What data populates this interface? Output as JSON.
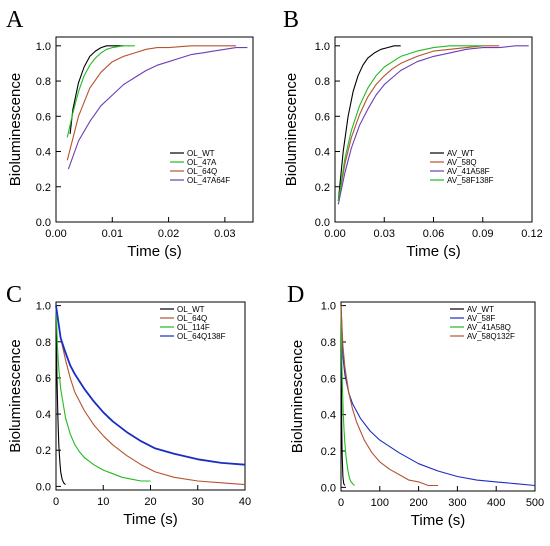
{
  "colors": {
    "black": "#000000",
    "green": "#22bb22",
    "brown": "#b5532e",
    "purple": "#6a3fb5",
    "blue": "#1a2cc4"
  },
  "chart_data": [
    {
      "panel": "A",
      "type": "line",
      "xlabel": "Time (s)",
      "ylabel": "Bioluminescence",
      "xlim": [
        0,
        0.035
      ],
      "ylim": [
        0,
        1.05
      ],
      "xticks": [
        0.0,
        0.01,
        0.02,
        0.03
      ],
      "xtick_labels": [
        "0.00",
        "0.01",
        "0.02",
        "0.03"
      ],
      "yticks": [
        0,
        0.2,
        0.4,
        0.6,
        0.8,
        1.0
      ],
      "ytick_labels": [
        "0.0",
        "0.2",
        "0.4",
        "0.6",
        "0.8",
        "1.0"
      ],
      "legend_position": "bottom-right",
      "series": [
        {
          "name": "OL_WT",
          "color": "#000000",
          "x": [
            0.0025,
            0.003,
            0.004,
            0.005,
            0.006,
            0.007,
            0.008,
            0.009,
            0.01,
            0.011,
            0.012
          ],
          "y": [
            0.5,
            0.64,
            0.79,
            0.88,
            0.94,
            0.97,
            0.99,
            1.0,
            1.0,
            1.0,
            1.0
          ]
        },
        {
          "name": "OL_47A",
          "color": "#22bb22",
          "x": [
            0.002,
            0.003,
            0.004,
            0.005,
            0.006,
            0.007,
            0.008,
            0.009,
            0.01,
            0.012,
            0.014
          ],
          "y": [
            0.48,
            0.62,
            0.74,
            0.83,
            0.89,
            0.93,
            0.96,
            0.98,
            0.99,
            1.0,
            1.0
          ]
        },
        {
          "name": "OL_64Q",
          "color": "#b5532e",
          "x": [
            0.002,
            0.004,
            0.006,
            0.008,
            0.01,
            0.012,
            0.014,
            0.016,
            0.018,
            0.02,
            0.024,
            0.028,
            0.032
          ],
          "y": [
            0.35,
            0.6,
            0.76,
            0.85,
            0.91,
            0.94,
            0.96,
            0.98,
            0.99,
            0.99,
            1.0,
            1.0,
            1.0
          ]
        },
        {
          "name": "OL_47A64F",
          "color": "#6a3fb5",
          "x": [
            0.0022,
            0.004,
            0.006,
            0.008,
            0.01,
            0.012,
            0.014,
            0.016,
            0.018,
            0.02,
            0.022,
            0.024,
            0.026,
            0.028,
            0.03,
            0.032,
            0.034
          ],
          "y": [
            0.3,
            0.46,
            0.57,
            0.66,
            0.72,
            0.78,
            0.82,
            0.86,
            0.89,
            0.91,
            0.93,
            0.95,
            0.96,
            0.97,
            0.98,
            0.99,
            0.99
          ]
        }
      ]
    },
    {
      "panel": "B",
      "type": "line",
      "xlabel": "Time (s)",
      "ylabel": "Bioluminescence",
      "xlim": [
        0,
        0.12
      ],
      "ylim": [
        0,
        1.05
      ],
      "xticks": [
        0.0,
        0.03,
        0.06,
        0.09,
        0.12
      ],
      "xtick_labels": [
        "0.00",
        "0.03",
        "0.06",
        "0.09",
        "0.12"
      ],
      "yticks": [
        0,
        0.2,
        0.4,
        0.6,
        0.8,
        1.0
      ],
      "ytick_labels": [
        "0.0",
        "0.2",
        "0.4",
        "0.6",
        "0.8",
        "1.0"
      ],
      "legend_position": "bottom-right",
      "series": [
        {
          "name": "AV_WT",
          "color": "#000000",
          "x": [
            0.002,
            0.005,
            0.008,
            0.011,
            0.014,
            0.017,
            0.02,
            0.024,
            0.028,
            0.032,
            0.036,
            0.04
          ],
          "y": [
            0.12,
            0.4,
            0.6,
            0.74,
            0.83,
            0.89,
            0.93,
            0.96,
            0.98,
            0.99,
            1.0,
            1.0
          ]
        },
        {
          "name": "AV_58Q",
          "color": "#b5532e",
          "x": [
            0.002,
            0.006,
            0.01,
            0.015,
            0.02,
            0.025,
            0.03,
            0.035,
            0.04,
            0.05,
            0.06,
            0.07,
            0.08,
            0.09,
            0.1
          ],
          "y": [
            0.12,
            0.33,
            0.48,
            0.61,
            0.71,
            0.78,
            0.83,
            0.87,
            0.9,
            0.94,
            0.97,
            0.98,
            0.99,
            1.0,
            1.0
          ]
        },
        {
          "name": "AV_41A58F",
          "color": "#6a3fb5",
          "x": [
            0.002,
            0.006,
            0.01,
            0.015,
            0.02,
            0.025,
            0.03,
            0.035,
            0.04,
            0.05,
            0.06,
            0.07,
            0.08,
            0.09,
            0.1,
            0.11,
            0.118
          ],
          "y": [
            0.1,
            0.28,
            0.42,
            0.55,
            0.64,
            0.72,
            0.78,
            0.82,
            0.86,
            0.91,
            0.94,
            0.96,
            0.98,
            0.99,
            0.99,
            1.0,
            1.0
          ]
        },
        {
          "name": "AV_58F138F",
          "color": "#22bb22",
          "x": [
            0.002,
            0.006,
            0.01,
            0.015,
            0.02,
            0.025,
            0.03,
            0.035,
            0.04,
            0.05,
            0.06,
            0.07,
            0.08,
            0.09
          ],
          "y": [
            0.12,
            0.36,
            0.52,
            0.66,
            0.76,
            0.83,
            0.88,
            0.91,
            0.94,
            0.97,
            0.99,
            1.0,
            1.0,
            1.0
          ]
        }
      ]
    },
    {
      "panel": "C",
      "type": "line",
      "xlabel": "Time (s)",
      "ylabel": "Bioluminescence",
      "xlim": [
        0,
        40
      ],
      "ylim": [
        -0.02,
        1.02
      ],
      "xticks": [
        0,
        10,
        20,
        30,
        40
      ],
      "xtick_labels": [
        "0",
        "10",
        "20",
        "30",
        "40"
      ],
      "yticks": [
        0,
        0.2,
        0.4,
        0.6,
        0.8,
        1.0
      ],
      "ytick_labels": [
        "0.0",
        "0.2",
        "0.4",
        "0.6",
        "0.8",
        "1.0"
      ],
      "legend_position": "top-right",
      "series": [
        {
          "name": "OL_WT",
          "color": "#000000",
          "x": [
            0,
            0.2,
            0.4,
            0.6,
            0.8,
            1.0,
            1.3,
            1.6,
            2.0
          ],
          "y": [
            1.0,
            0.62,
            0.38,
            0.23,
            0.14,
            0.08,
            0.04,
            0.02,
            0.01
          ]
        },
        {
          "name": "OL_64Q",
          "color": "#b5532e",
          "x": [
            0,
            1,
            2,
            3,
            4,
            6,
            8,
            10,
            12,
            15,
            18,
            21,
            25,
            30,
            35,
            40
          ],
          "y": [
            1.0,
            0.82,
            0.7,
            0.6,
            0.52,
            0.42,
            0.34,
            0.28,
            0.23,
            0.17,
            0.12,
            0.08,
            0.05,
            0.03,
            0.02,
            0.01
          ]
        },
        {
          "name": "OL_114F",
          "color": "#22bb22",
          "x": [
            0,
            0.3,
            0.6,
            1,
            2,
            3,
            4,
            5,
            6,
            8,
            10,
            12,
            14,
            16,
            18,
            20
          ],
          "y": [
            1.0,
            0.78,
            0.65,
            0.54,
            0.38,
            0.29,
            0.23,
            0.19,
            0.16,
            0.12,
            0.09,
            0.07,
            0.05,
            0.04,
            0.03,
            0.03
          ]
        },
        {
          "name": "OL_64Q138F",
          "color": "#1a2cc4",
          "x": [
            0,
            1,
            2,
            3,
            4,
            6,
            8,
            10,
            12,
            15,
            18,
            21,
            25,
            30,
            35,
            40
          ],
          "y": [
            1.0,
            0.82,
            0.74,
            0.67,
            0.62,
            0.54,
            0.47,
            0.41,
            0.36,
            0.3,
            0.25,
            0.21,
            0.18,
            0.15,
            0.13,
            0.12
          ]
        }
      ]
    },
    {
      "panel": "D",
      "type": "line",
      "xlabel": "Time (s)",
      "ylabel": "Bioluminescence",
      "xlim": [
        0,
        500
      ],
      "ylim": [
        -0.02,
        1.02
      ],
      "xticks": [
        0,
        100,
        200,
        300,
        400,
        500
      ],
      "xtick_labels": [
        "0",
        "100",
        "200",
        "300",
        "400",
        "500"
      ],
      "yticks": [
        0,
        0.2,
        0.4,
        0.6,
        0.8,
        1.0
      ],
      "ytick_labels": [
        "0.0",
        "0.2",
        "0.4",
        "0.6",
        "0.8",
        "1.0"
      ],
      "legend_position": "top-right",
      "series": [
        {
          "name": "AV_WT",
          "color": "#000000",
          "x": [
            0,
            1,
            2,
            3,
            5,
            7,
            10
          ],
          "y": [
            1.0,
            0.55,
            0.3,
            0.17,
            0.06,
            0.02,
            0.01
          ]
        },
        {
          "name": "AV_58F",
          "color": "#1a2cc4",
          "x": [
            0,
            5,
            10,
            20,
            30,
            50,
            75,
            100,
            150,
            200,
            250,
            300,
            350,
            400,
            450,
            500
          ],
          "y": [
            1.0,
            0.72,
            0.62,
            0.52,
            0.46,
            0.38,
            0.31,
            0.26,
            0.19,
            0.13,
            0.09,
            0.06,
            0.04,
            0.03,
            0.02,
            0.01
          ]
        },
        {
          "name": "AV_41A58Q",
          "color": "#22bb22",
          "x": [
            0,
            2,
            4,
            6,
            8,
            10,
            14,
            18,
            22,
            26,
            30,
            35
          ],
          "y": [
            1.0,
            0.7,
            0.52,
            0.4,
            0.31,
            0.24,
            0.15,
            0.09,
            0.05,
            0.03,
            0.02,
            0.01
          ]
        },
        {
          "name": "AV_58Q132F",
          "color": "#b5532e",
          "x": [
            0,
            5,
            10,
            20,
            30,
            40,
            60,
            80,
            100,
            125,
            150,
            175,
            200,
            225,
            250
          ],
          "y": [
            1.0,
            0.78,
            0.66,
            0.52,
            0.43,
            0.36,
            0.26,
            0.19,
            0.14,
            0.1,
            0.07,
            0.04,
            0.03,
            0.01,
            0.01
          ]
        }
      ]
    }
  ]
}
